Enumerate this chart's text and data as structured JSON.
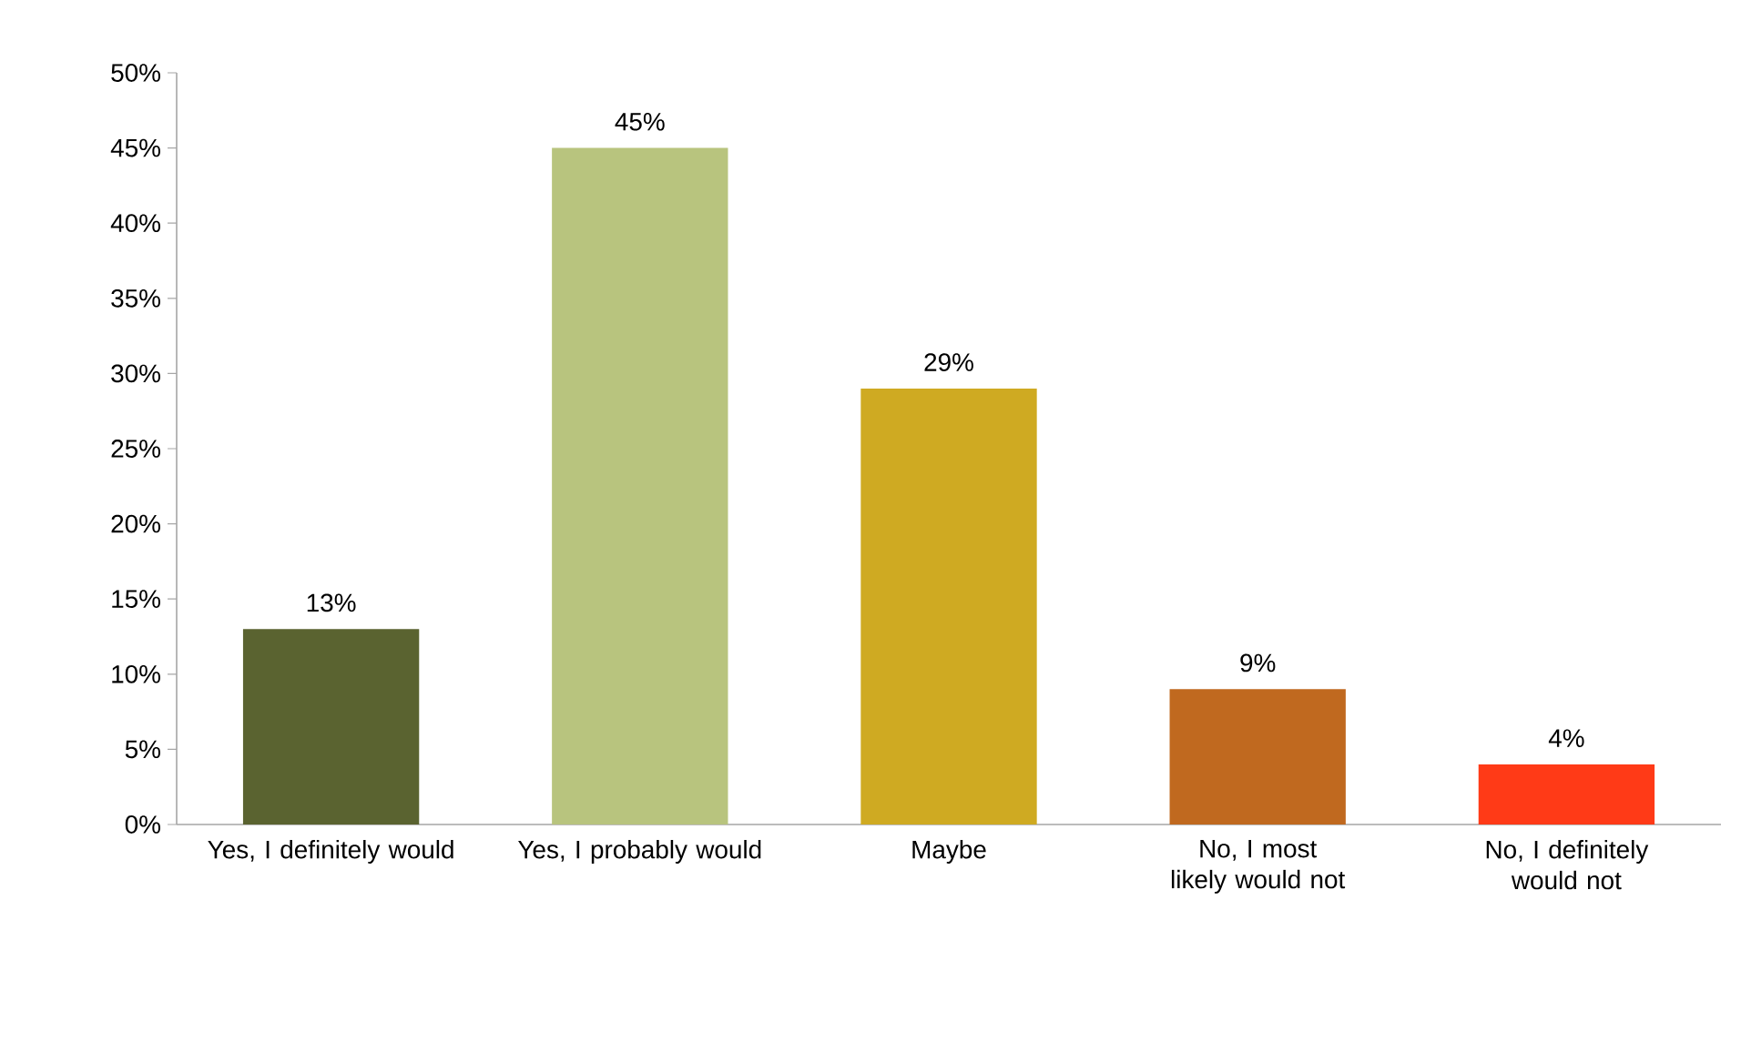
{
  "chart_data": {
    "type": "bar",
    "categories": [
      "Yes, I definitely would",
      "Yes, I probably would",
      "Maybe",
      "No, I most likely would not",
      "No, I definitely would not"
    ],
    "values": [
      13,
      45,
      29,
      9,
      4
    ],
    "colors": [
      "#5a6330",
      "#b8c47e",
      "#cfaa22",
      "#c0691f",
      "#ff3a17"
    ],
    "value_labels": [
      "13%",
      "45%",
      "29%",
      "9%",
      "4%"
    ],
    "ylim": [
      0,
      50
    ],
    "yticks": [
      {
        "value": 0,
        "label": "0%"
      },
      {
        "value": 5,
        "label": "5%"
      },
      {
        "value": 10,
        "label": "10%"
      },
      {
        "value": 15,
        "label": "15%"
      },
      {
        "value": 20,
        "label": "20%"
      },
      {
        "value": 25,
        "label": "25%"
      },
      {
        "value": 30,
        "label": "30%"
      },
      {
        "value": 35,
        "label": "35%"
      },
      {
        "value": 40,
        "label": "40%"
      },
      {
        "value": 45,
        "label": "45%"
      },
      {
        "value": 50,
        "label": "50%"
      }
    ]
  }
}
